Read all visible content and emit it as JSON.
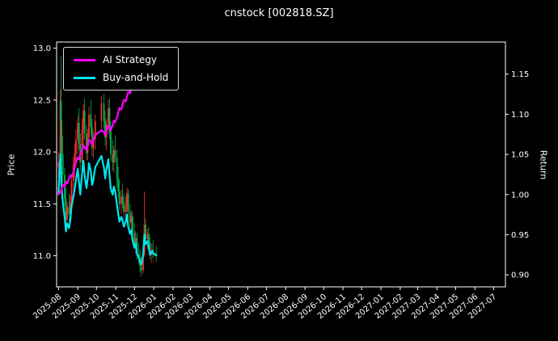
{
  "figure": {
    "background": "#000000",
    "text_color": "#ffffff"
  },
  "chart_data": {
    "type": "candlestick+line",
    "title": "cnstock [002818.SZ]",
    "ylabel_left": "Price",
    "ylabel_right": "Return",
    "grid": false,
    "legend_position": "upper left",
    "xlim": [
      "2025-07-29",
      "2027-07-20"
    ],
    "ylim_left": [
      10.7,
      13.06
    ],
    "ylim_right": [
      0.885,
      1.19
    ],
    "yticks_left": [
      "11.0",
      "11.5",
      "12.0",
      "12.5",
      "13.0"
    ],
    "yticks_right": [
      "0.90",
      "0.95",
      "1.00",
      "1.05",
      "1.10",
      "1.15"
    ],
    "xticks": [
      "2025-08",
      "2025-09",
      "2025-10",
      "2025-11",
      "2025-12",
      "2026-01",
      "2026-02",
      "2026-03",
      "2026-04",
      "2026-05",
      "2026-06",
      "2026-07",
      "2026-08",
      "2026-09",
      "2026-10",
      "2026-11",
      "2026-12",
      "2027-01",
      "2027-02",
      "2027-03",
      "2027-04",
      "2027-05",
      "2027-06",
      "2027-07"
    ],
    "colors": {
      "candle_up": "#ff2d2d",
      "candle_down": "#00b050",
      "ai_strategy": "#ff00ff",
      "buy_and_hold": "#00e5ee",
      "axis": "#ffffff",
      "background": "#000000"
    },
    "candles": {
      "dates": [
        "2025-08-01",
        "2025-08-04",
        "2025-08-05",
        "2025-08-06",
        "2025-08-08",
        "2025-08-11",
        "2025-08-13",
        "2025-08-15",
        "2025-08-18",
        "2025-08-20",
        "2025-08-22",
        "2025-08-25",
        "2025-08-27",
        "2025-08-29",
        "2025-09-01",
        "2025-09-03",
        "2025-09-05",
        "2025-09-08",
        "2025-09-10",
        "2025-09-12",
        "2025-09-15",
        "2025-09-17",
        "2025-09-19",
        "2025-09-22",
        "2025-09-24",
        "2025-09-26",
        "2025-09-29",
        "2025-10-09",
        "2025-10-13",
        "2025-10-15",
        "2025-10-17",
        "2025-10-20",
        "2025-10-22",
        "2025-10-24",
        "2025-10-27",
        "2025-10-29",
        "2025-10-31",
        "2025-11-03",
        "2025-11-05",
        "2025-11-07",
        "2025-11-10",
        "2025-11-12",
        "2025-11-14",
        "2025-11-17",
        "2025-11-19",
        "2025-11-21",
        "2025-11-24",
        "2025-11-26",
        "2025-11-28",
        "2025-12-01",
        "2025-12-03",
        "2025-12-05",
        "2025-12-08",
        "2025-12-10",
        "2025-12-12",
        "2025-12-15",
        "2025-12-17",
        "2025-12-19",
        "2025-12-22",
        "2025-12-24",
        "2025-12-26",
        "2025-12-29",
        "2025-12-31",
        "2026-01-05"
      ],
      "open": [
        11.85,
        11.9,
        12.5,
        12.3,
        11.98,
        11.78,
        11.55,
        11.35,
        11.47,
        11.4,
        11.52,
        11.72,
        11.88,
        11.98,
        12.12,
        12.28,
        12.08,
        11.9,
        12.22,
        12.4,
        12.18,
        11.99,
        12.14,
        12.36,
        12.24,
        12.04,
        12.12,
        12.3,
        12.47,
        12.3,
        12.14,
        12.27,
        12.42,
        12.2,
        11.98,
        11.9,
        12.02,
        11.95,
        11.74,
        11.62,
        11.5,
        11.57,
        11.52,
        11.42,
        11.49,
        11.6,
        11.42,
        11.32,
        11.38,
        11.22,
        11.12,
        11.17,
        11.02,
        10.97,
        10.9,
        10.86,
        11.01,
        11.3,
        11.16,
        11.21,
        11.13,
        11.01,
        11.06,
        11.03
      ],
      "high": [
        12.0,
        12.6,
        12.92,
        12.45,
        12.15,
        11.85,
        11.65,
        11.52,
        11.6,
        11.58,
        11.78,
        11.95,
        12.08,
        12.22,
        12.35,
        12.42,
        12.18,
        12.32,
        12.46,
        12.52,
        12.26,
        12.22,
        12.44,
        12.5,
        12.32,
        12.2,
        12.36,
        12.54,
        12.56,
        12.4,
        12.32,
        12.5,
        12.52,
        12.3,
        12.12,
        12.06,
        12.16,
        12.02,
        11.86,
        11.74,
        11.64,
        11.7,
        11.6,
        11.57,
        11.66,
        11.64,
        11.5,
        11.44,
        11.42,
        11.32,
        11.24,
        11.22,
        11.12,
        11.06,
        10.99,
        11.06,
        11.62,
        11.36,
        11.26,
        11.28,
        11.18,
        11.12,
        11.15,
        11.1
      ],
      "low": [
        11.75,
        11.85,
        12.2,
        11.9,
        11.7,
        11.48,
        11.28,
        11.28,
        11.33,
        11.35,
        11.45,
        11.62,
        11.75,
        11.88,
        11.98,
        12.02,
        11.82,
        11.86,
        12.06,
        12.12,
        11.92,
        11.92,
        12.06,
        12.16,
        11.96,
        11.94,
        12.02,
        12.2,
        12.22,
        12.06,
        12.02,
        12.17,
        12.12,
        11.92,
        11.82,
        11.8,
        11.9,
        11.66,
        11.56,
        11.44,
        11.4,
        11.46,
        11.36,
        11.34,
        11.42,
        11.36,
        11.26,
        11.22,
        11.16,
        11.06,
        11.02,
        10.96,
        10.92,
        10.84,
        10.8,
        10.83,
        10.99,
        11.1,
        11.06,
        11.08,
        10.96,
        10.93,
        10.98,
        10.94
      ],
      "close": [
        11.9,
        12.5,
        12.3,
        11.98,
        11.78,
        11.55,
        11.35,
        11.47,
        11.4,
        11.52,
        11.72,
        11.88,
        11.98,
        12.12,
        12.28,
        12.08,
        11.9,
        12.22,
        12.4,
        12.18,
        11.99,
        12.14,
        12.36,
        12.24,
        12.04,
        12.12,
        12.3,
        12.47,
        12.3,
        12.14,
        12.27,
        12.42,
        12.2,
        11.98,
        11.9,
        12.02,
        11.95,
        11.74,
        11.62,
        11.5,
        11.57,
        11.52,
        11.42,
        11.49,
        11.6,
        11.42,
        11.32,
        11.38,
        11.22,
        11.12,
        11.17,
        11.02,
        10.97,
        10.9,
        10.86,
        11.01,
        11.3,
        11.16,
        11.21,
        11.13,
        11.01,
        11.06,
        11.03,
        11.0
      ]
    },
    "series": [
      {
        "name": "AI Strategy",
        "color": "#ff00ff",
        "axis": "right",
        "values": [
          1.0,
          1.004,
          1.002,
          1.008,
          1.012,
          1.01,
          1.016,
          1.014,
          1.02,
          1.024,
          1.022,
          1.028,
          1.034,
          1.04,
          1.046,
          1.044,
          1.05,
          1.056,
          1.062,
          1.058,
          1.056,
          1.062,
          1.068,
          1.066,
          1.062,
          1.068,
          1.074,
          1.08,
          1.078,
          1.074,
          1.08,
          1.086,
          1.084,
          1.08,
          1.086,
          1.092,
          1.09,
          1.096,
          1.102,
          1.108,
          1.106,
          1.112,
          1.118,
          1.116,
          1.122,
          1.128,
          1.126,
          1.132,
          1.138,
          1.144,
          1.142,
          1.148,
          1.154,
          1.152,
          1.158,
          1.156,
          1.162,
          1.16,
          1.166,
          1.164,
          1.17,
          1.168,
          1.172,
          1.17
        ]
      },
      {
        "name": "Buy-and-Hold",
        "color": "#00e5ee",
        "axis": "right",
        "values": [
          1.0,
          1.05,
          1.034,
          1.007,
          0.99,
          0.971,
          0.954,
          0.964,
          0.958,
          0.968,
          0.985,
          0.998,
          1.007,
          1.018,
          1.032,
          1.015,
          1.0,
          1.027,
          1.042,
          1.024,
          1.008,
          1.02,
          1.039,
          1.029,
          1.012,
          1.018,
          1.034,
          1.048,
          1.034,
          1.02,
          1.031,
          1.044,
          1.025,
          1.007,
          1.0,
          1.01,
          1.004,
          0.987,
          0.976,
          0.966,
          0.972,
          0.968,
          0.96,
          0.966,
          0.975,
          0.96,
          0.951,
          0.956,
          0.943,
          0.934,
          0.939,
          0.926,
          0.922,
          0.916,
          0.913,
          0.925,
          0.95,
          0.938,
          0.942,
          0.935,
          0.925,
          0.929,
          0.927,
          0.924
        ]
      }
    ]
  }
}
